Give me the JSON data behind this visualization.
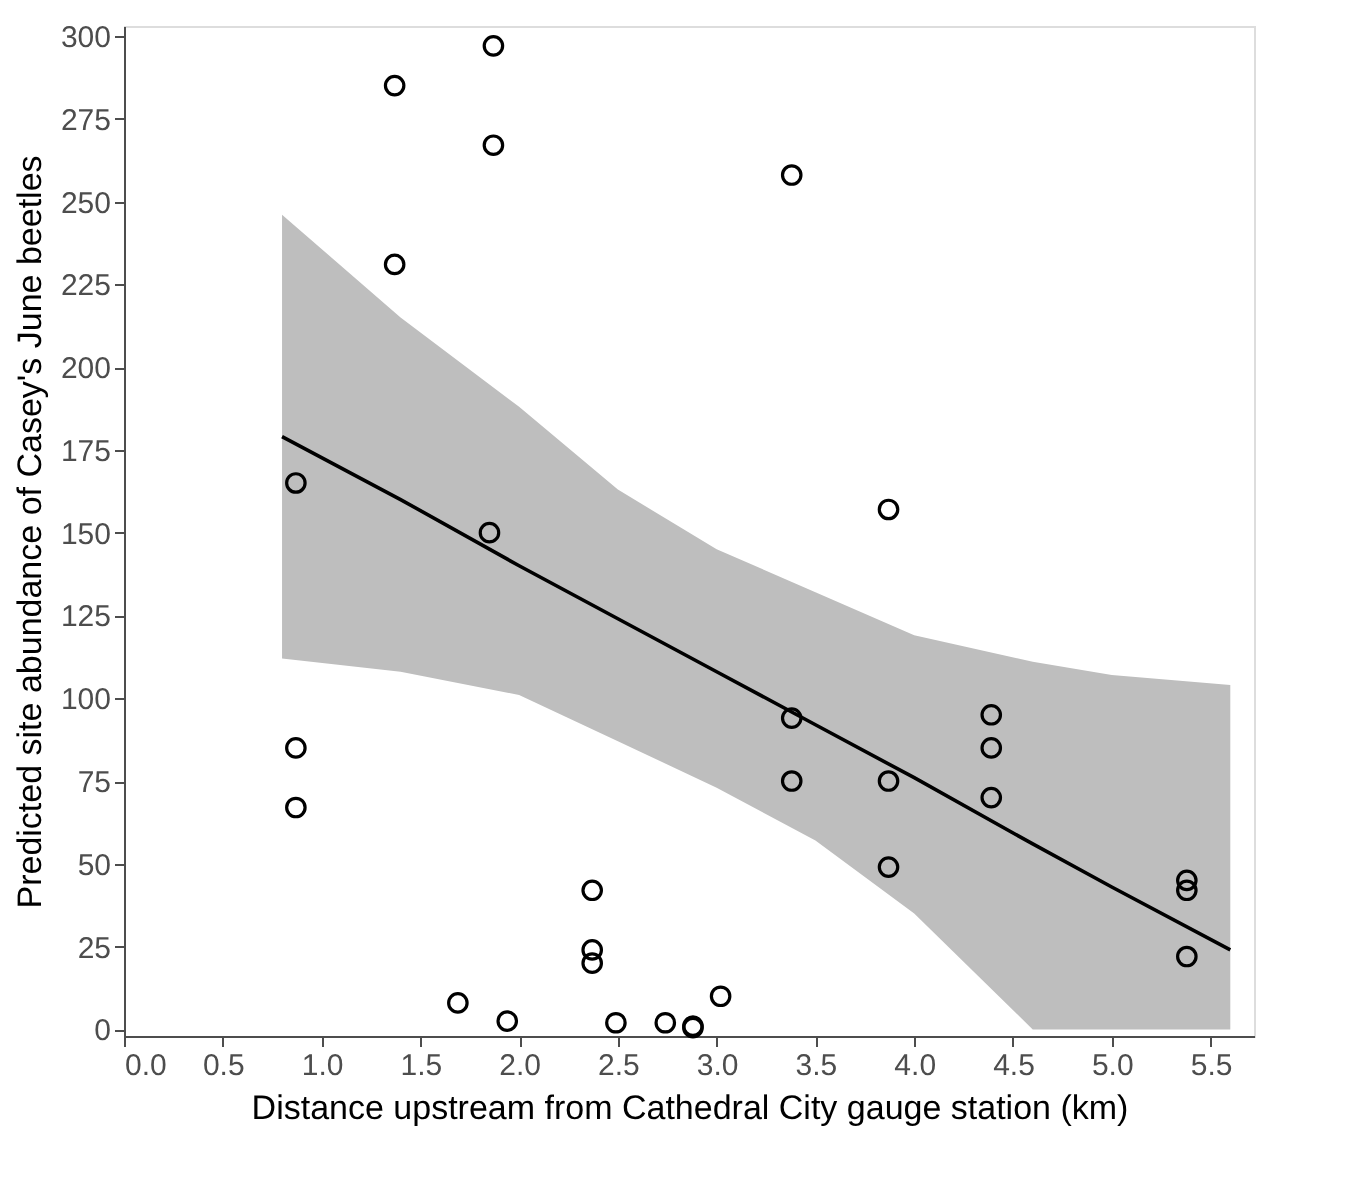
{
  "chart_data": {
    "type": "scatter",
    "xlabel": "Distance upstream from Cathedral City gauge station (km)",
    "ylabel": "Predicted site abundance of Casey's June beetles",
    "xlim": [
      0,
      5.72
    ],
    "ylim": [
      -2,
      303
    ],
    "xticks": [
      {
        "value": 0,
        "label": "0.0"
      },
      0.5,
      {
        "value": 1,
        "label": "1.0"
      },
      1.5,
      {
        "value": 2,
        "label": "2.0"
      },
      2.5,
      {
        "value": 3,
        "label": "3.0"
      },
      3.5,
      {
        "value": 4,
        "label": "4.0"
      },
      4.5,
      {
        "value": 5,
        "label": "5.0"
      },
      5.5
    ],
    "yticks": [
      0,
      25,
      50,
      75,
      100,
      125,
      150,
      175,
      200,
      225,
      250,
      275,
      300
    ],
    "grid": false,
    "series": [
      {
        "type": "line",
        "color": "#000000",
        "line_style": "solid",
        "x": [
          0.8,
          1.4,
          2.0,
          2.5,
          3.0,
          3.5,
          4.0,
          4.6,
          5.0,
          5.6
        ],
        "values": [
          179,
          160,
          140,
          124,
          108,
          92,
          76,
          56,
          43,
          24
        ],
        "lower": [
          112,
          108,
          101,
          87,
          73,
          57,
          35,
          0,
          0,
          0
        ],
        "upper": [
          246,
          215,
          188,
          163,
          145,
          132,
          119,
          111,
          107,
          104
        ]
      },
      {
        "color": "#000000",
        "marker": "circle",
        "x": [
          0.87,
          0.87,
          0.87,
          1.37,
          1.37,
          1.69,
          1.85,
          1.87,
          1.87,
          1.94,
          2.37,
          2.37,
          2.37,
          2.49,
          2.74,
          2.88,
          2.88,
          3.02,
          3.38,
          3.38,
          3.38,
          3.87,
          3.87,
          3.87,
          4.39,
          4.39,
          4.39,
          5.38,
          5.38,
          5.38
        ],
        "values": [
          165,
          85,
          67,
          285,
          231,
          8,
          150,
          297,
          267,
          2.5,
          42,
          24,
          20,
          2,
          2,
          1,
          0.5,
          10,
          258,
          94,
          75,
          157,
          75,
          49,
          95,
          85,
          70,
          45,
          42,
          22
        ]
      }
    ]
  }
}
